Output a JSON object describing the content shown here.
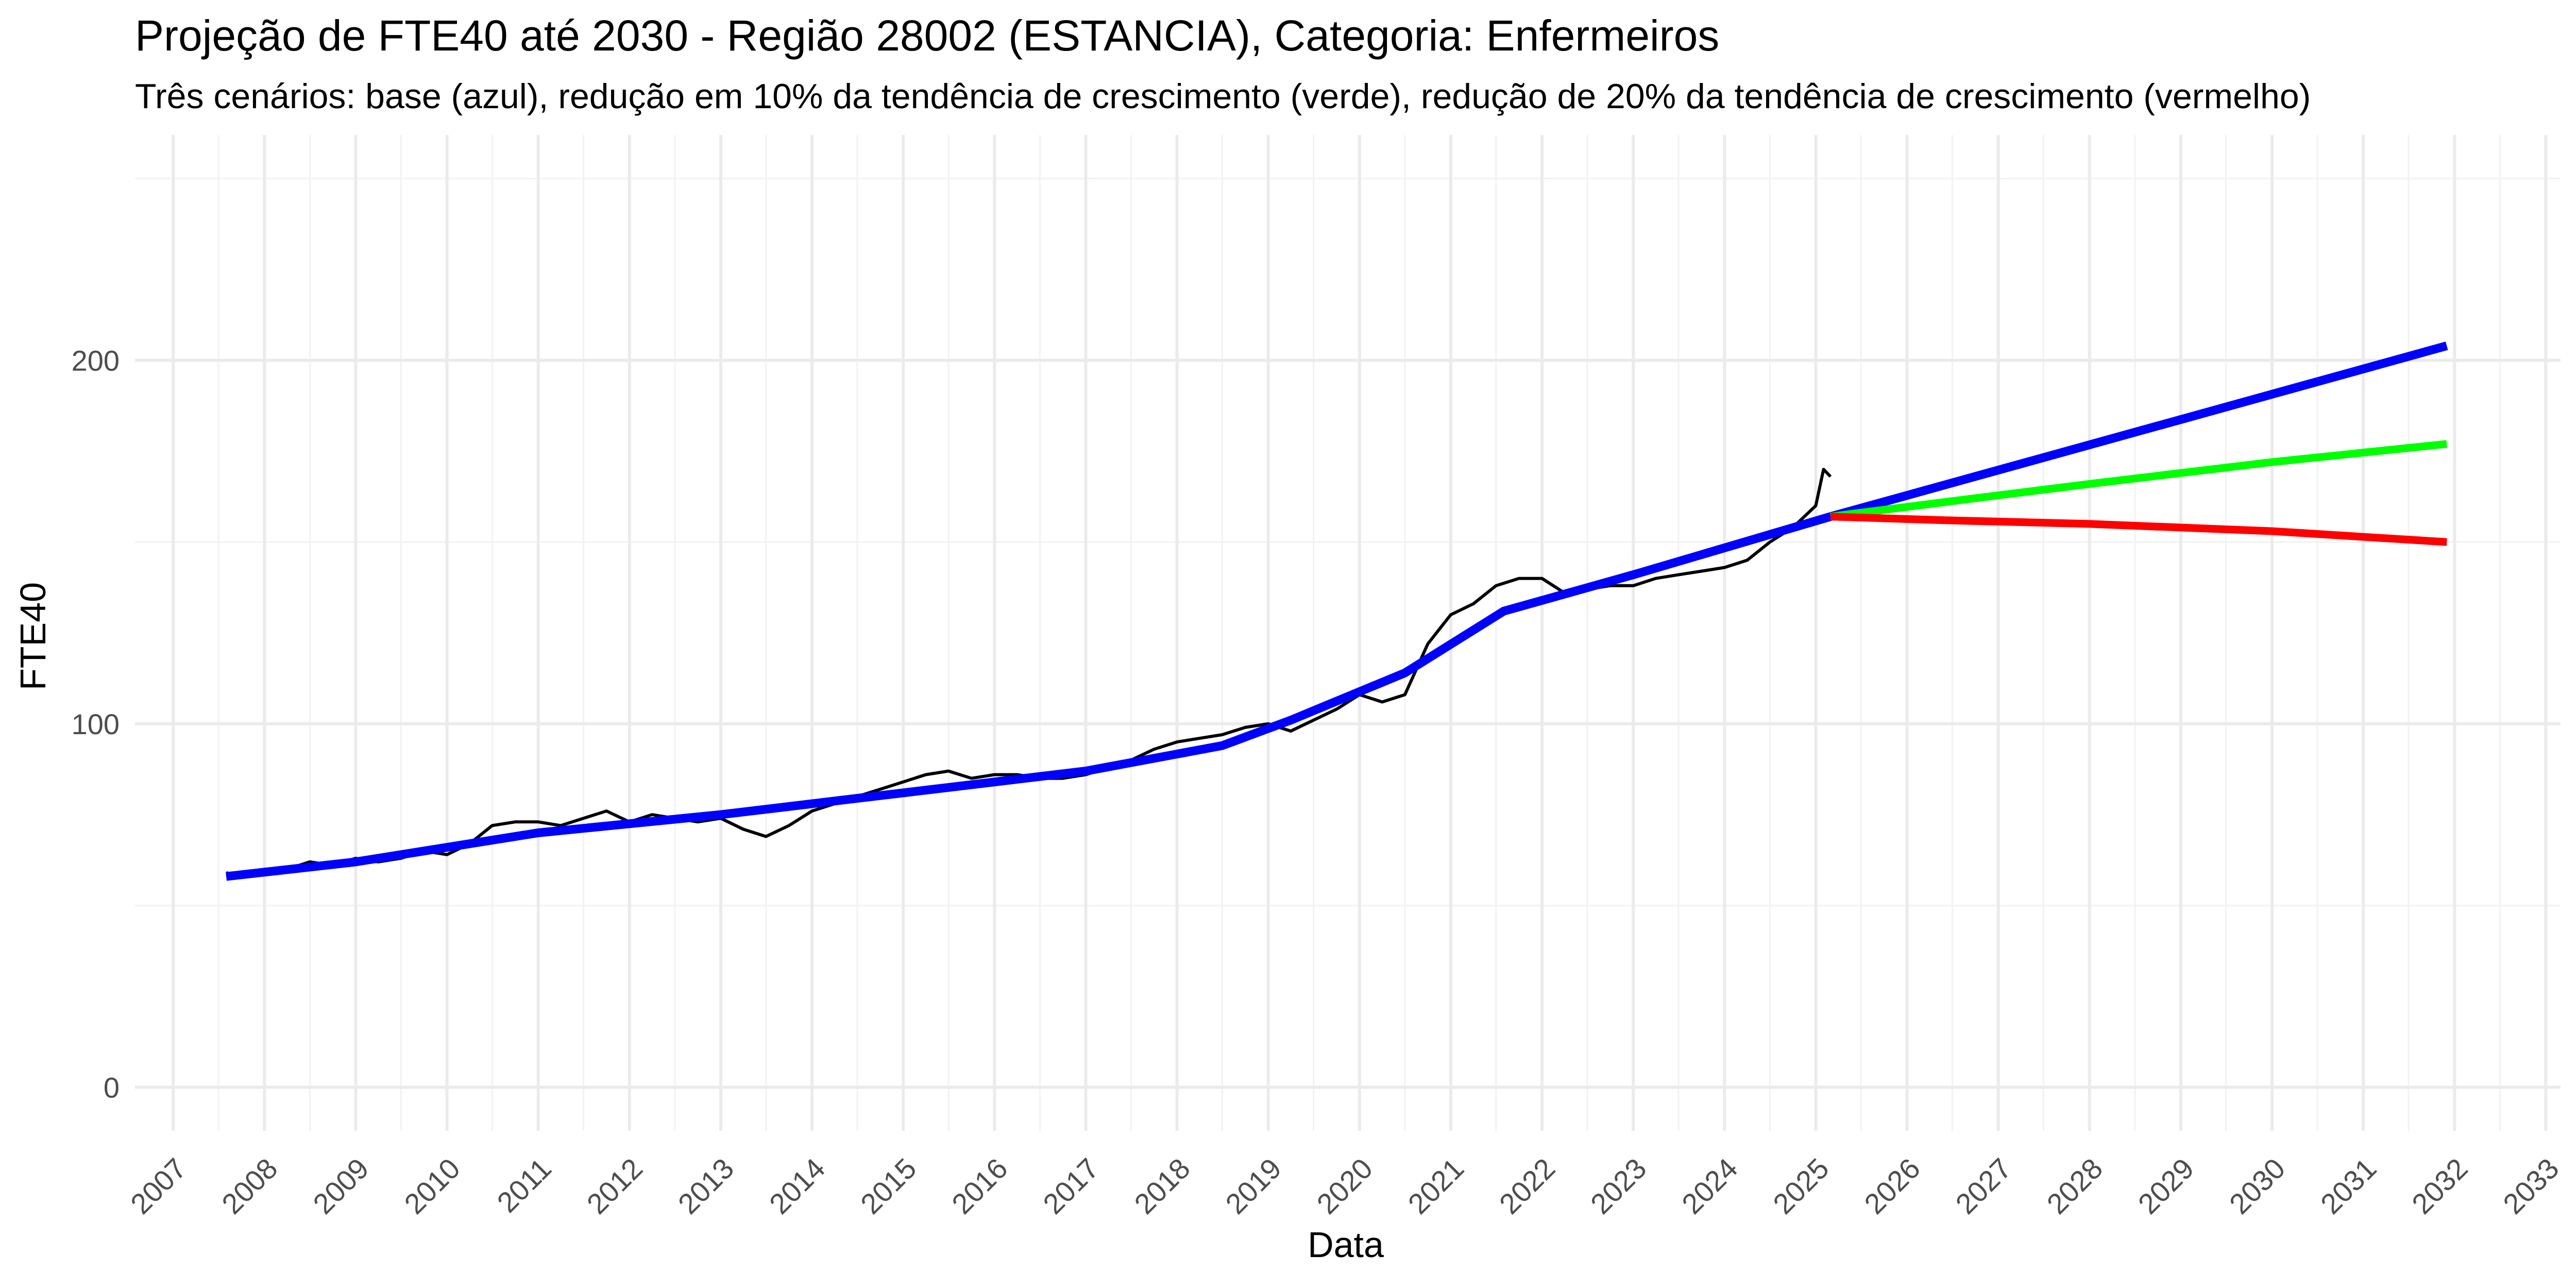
{
  "chart_data": {
    "type": "line",
    "title": "Projeção de FTE40 até 2030 - Região 28002 (ESTANCIA), Categoria: Enfermeiros",
    "subtitle": "Três cenários: base (azul), redução em 10% da tendência de crescimento (verde), redução de 20% da tendência de crescimento (vermelho)",
    "xlabel": "Data",
    "ylabel": "FTE40",
    "x_ticks": [
      "2007",
      "2008",
      "2009",
      "2010",
      "2011",
      "2012",
      "2013",
      "2014",
      "2015",
      "2016",
      "2017",
      "2018",
      "2019",
      "2020",
      "2021",
      "2022",
      "2023",
      "2024",
      "2025",
      "2026",
      "2027",
      "2028",
      "2029",
      "2030",
      "2031",
      "2032",
      "2033"
    ],
    "y_ticks": [
      0,
      100,
      200
    ],
    "xlim": [
      "2006-08-01",
      "2033-03-01"
    ],
    "ylim": [
      -12,
      262
    ],
    "grid": true,
    "legend": "none",
    "colors": {
      "observed": "#000000",
      "base": "#0000ff",
      "green": "#00ff00",
      "red": "#ff0000"
    },
    "series": [
      {
        "key": "observed",
        "x": [
          "2007-08",
          "2007-10",
          "2008-01",
          "2008-04",
          "2008-07",
          "2008-10",
          "2009-01",
          "2009-04",
          "2009-07",
          "2009-10",
          "2010-01",
          "2010-04",
          "2010-07",
          "2010-10",
          "2011-01",
          "2011-04",
          "2011-07",
          "2011-10",
          "2012-01",
          "2012-04",
          "2012-07",
          "2012-10",
          "2013-01",
          "2013-04",
          "2013-07",
          "2013-10",
          "2014-01",
          "2014-04",
          "2014-07",
          "2014-10",
          "2015-01",
          "2015-04",
          "2015-07",
          "2015-10",
          "2016-01",
          "2016-04",
          "2016-07",
          "2016-10",
          "2017-01",
          "2017-04",
          "2017-07",
          "2017-10",
          "2018-01",
          "2018-04",
          "2018-07",
          "2018-10",
          "2019-01",
          "2019-04",
          "2019-07",
          "2019-10",
          "2020-01",
          "2020-04",
          "2020-07",
          "2020-10",
          "2021-01",
          "2021-04",
          "2021-07",
          "2021-10",
          "2022-01",
          "2022-04",
          "2022-07",
          "2022-10",
          "2023-01",
          "2023-04",
          "2023-07",
          "2023-10",
          "2024-01",
          "2024-04",
          "2024-07",
          "2024-10",
          "2025-01",
          "2025-02",
          "2025-03"
        ],
        "y": [
          59,
          58,
          60,
          60,
          62,
          61,
          63,
          62,
          63,
          65,
          64,
          67,
          72,
          73,
          73,
          72,
          74,
          76,
          73,
          75,
          74,
          73,
          74,
          71,
          69,
          72,
          76,
          78,
          80,
          82,
          84,
          86,
          87,
          85,
          86,
          86,
          85,
          85,
          86,
          88,
          90,
          93,
          95,
          96,
          97,
          99,
          100,
          98,
          101,
          104,
          108,
          106,
          108,
          122,
          130,
          133,
          138,
          140,
          140,
          136,
          137,
          138,
          138,
          140,
          141,
          142,
          143,
          145,
          150,
          154,
          160,
          170,
          168
        ]
      },
      {
        "key": "base",
        "x": [
          "2007-08",
          "2009-01",
          "2011-01",
          "2013-01",
          "2015-01",
          "2017-01",
          "2018-07",
          "2019-04",
          "2020-07",
          "2021-08",
          "2023-01",
          "2025-03",
          "2031-12"
        ],
        "y": [
          58,
          62,
          70,
          75,
          81,
          87,
          94,
          101,
          114,
          131,
          141,
          157,
          204
        ]
      },
      {
        "key": "green",
        "x": [
          "2025-03",
          "2026-06",
          "2028-01",
          "2030-01",
          "2031-12"
        ],
        "y": [
          157,
          161,
          166,
          172,
          177
        ]
      },
      {
        "key": "red",
        "x": [
          "2025-03",
          "2026-06",
          "2028-01",
          "2030-01",
          "2031-12"
        ],
        "y": [
          157,
          156,
          155,
          153,
          150
        ]
      }
    ]
  }
}
